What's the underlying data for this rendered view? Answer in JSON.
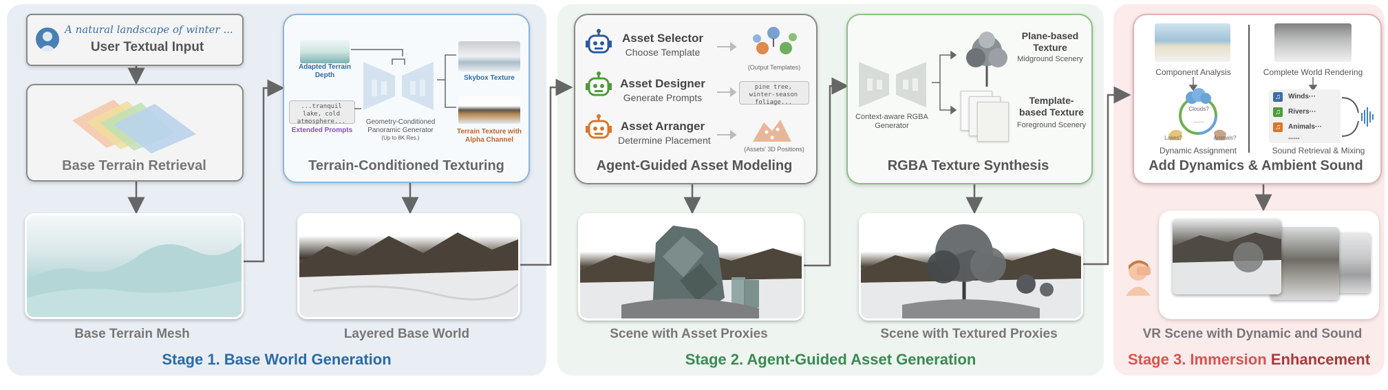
{
  "stage1": {
    "label": "Stage 1. Base World Generation",
    "user_prompt": "A natural landscape of winter ...",
    "user_input_title": "User Textual Input",
    "retrieval_title": "Base Terrain Retrieval",
    "mesh_caption": "Base Terrain Mesh",
    "texturing_title": "Terrain-Conditioned Texturing",
    "adapted_depth": "Adapted Terrain Depth",
    "prompt_box": "...tranquil lake, cold atmosphere...",
    "extended_prompts": "Extended Prompts",
    "generator": "Geometry-Conditioned Panoramic Generator",
    "generator_res": "(Up to 8K Res.)",
    "skybox": "Skybox Texture",
    "terrain_texture": "Terrain Texture with Alpha Channel",
    "layered_caption": "Layered Base World"
  },
  "stage2": {
    "label": "Stage 2. Agent-Guided Asset Generation",
    "modeling_title": "Agent-Guided Asset Modeling",
    "selector_title": "Asset Selector",
    "selector_sub": "Choose Template",
    "output_templates": "(Output Templates)",
    "designer_title": "Asset Designer",
    "designer_sub": "Generate Prompts",
    "designer_prompt": "pine tree, winter-season foliage...",
    "arranger_title": "Asset Arranger",
    "arranger_sub": "Determine Placement",
    "positions": "(Assets' 3D Positions)",
    "proxies_caption": "Scene with Asset Proxies",
    "synthesis_title": "RGBA Texture Synthesis",
    "rgba_generator": "Context-aware RGBA Generator",
    "plane_title": "Plane-based Texture",
    "plane_sub": "Midground Scenery",
    "template_title": "Template-based Texture",
    "template_sub": "Foreground Scenery",
    "textured_caption": "Scene with Textured Proxies"
  },
  "stage3": {
    "label_part1": "Stage 3. Immersion ",
    "label_part2": "Enhancement",
    "component_analysis": "Component Analysis",
    "complete_rendering": "Complete World Rendering",
    "clouds": "Clouds?",
    "lakes": "Lakes?",
    "animals": "Animals?",
    "ellipsis": "......",
    "dynamic_assignment": "Dynamic Assignment",
    "sound_items": [
      "Winds···",
      "Rivers···",
      "Animals···",
      "......"
    ],
    "sound_mixing": "Sound Retrieval & Mixing",
    "ambient_title": "Add Dynamics & Ambient Sound",
    "vr_caption": "VR Scene with Dynamic and Sound"
  },
  "colors": {
    "stage1_bg": "#e9eef5",
    "stage2_bg": "#eef4ef",
    "stage3_bg": "#fcebeb",
    "stage1_label": "#2c6aa5",
    "stage2_label": "#3b8a52",
    "stage3_label": "#d9534f",
    "stage3_label_dark": "#a83a3a",
    "depth_label": "#2c6aa5",
    "prompt_label": "#8a4fbf",
    "alpha_label": "#c0642a",
    "arrow": "#666666"
  }
}
